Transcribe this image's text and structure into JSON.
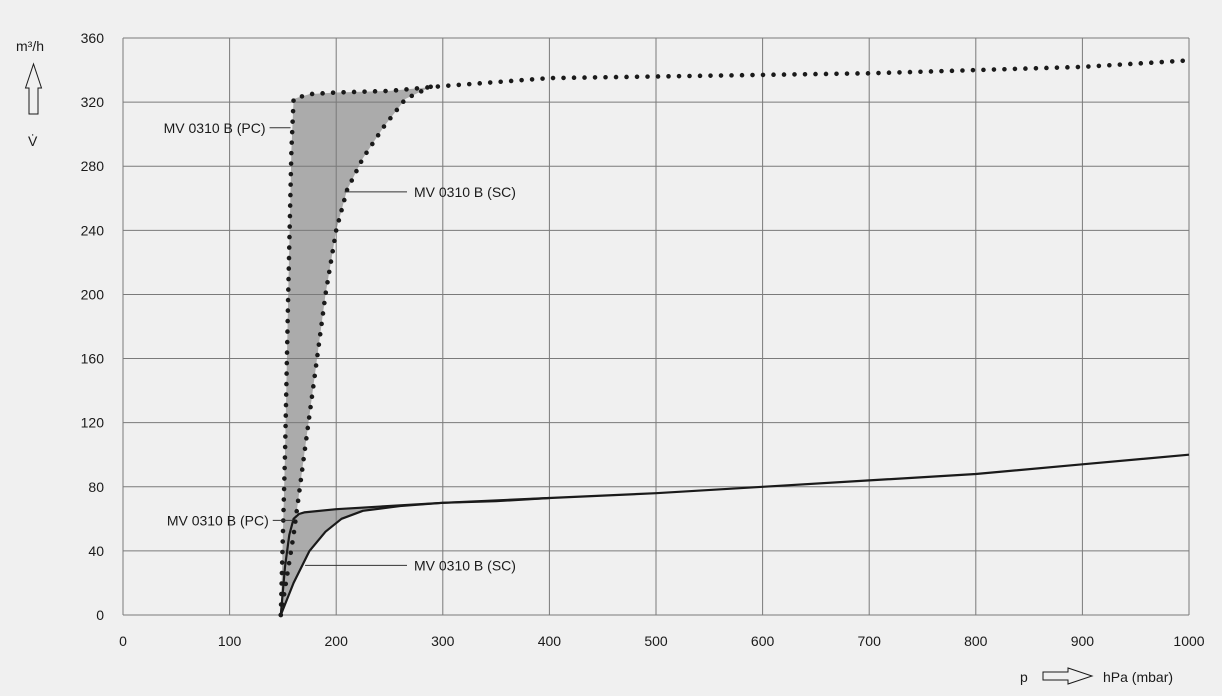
{
  "chart_data": {
    "type": "line",
    "ylabel_unit": "m³/h",
    "ylabel_symbol": "V̇",
    "xlabel_symbol": "p",
    "xlabel_unit": "hPa (mbar)",
    "xlim": [
      0,
      1000
    ],
    "ylim": [
      0,
      360
    ],
    "x_ticks": [
      0,
      100,
      200,
      300,
      400,
      500,
      600,
      700,
      800,
      900,
      1000
    ],
    "y_ticks": [
      0,
      40,
      80,
      120,
      160,
      200,
      240,
      280,
      320,
      360
    ],
    "grid": true,
    "colors": {
      "line": "#1a1a1a",
      "fill": "#ababab",
      "grid": "#7a7a7a",
      "background": "#f0f0f0"
    },
    "series": [
      {
        "name": "MV 0310 B (PC)",
        "style": "dotted",
        "points": [
          [
            148,
            0
          ],
          [
            152,
            100
          ],
          [
            155,
            200
          ],
          [
            158,
            290
          ],
          [
            160,
            322
          ],
          [
            175,
            325
          ],
          [
            200,
            326
          ],
          [
            250,
            327
          ],
          [
            300,
            330
          ],
          [
            400,
            335
          ],
          [
            500,
            336
          ],
          [
            600,
            337
          ],
          [
            700,
            338
          ],
          [
            800,
            340
          ],
          [
            900,
            342
          ],
          [
            1000,
            346
          ]
        ]
      },
      {
        "name": "MV 0310 B (SC)",
        "style": "dotted",
        "points": [
          [
            148,
            0
          ],
          [
            160,
            50
          ],
          [
            170,
            100
          ],
          [
            180,
            150
          ],
          [
            190,
            200
          ],
          [
            200,
            240
          ],
          [
            210,
            265
          ],
          [
            225,
            285
          ],
          [
            245,
            305
          ],
          [
            265,
            322
          ],
          [
            290,
            330
          ]
        ]
      },
      {
        "name": "MV 0310 B (PC)",
        "style": "solid",
        "points": [
          [
            148,
            0
          ],
          [
            152,
            30
          ],
          [
            156,
            50
          ],
          [
            160,
            60
          ],
          [
            165,
            63
          ],
          [
            170,
            64
          ],
          [
            200,
            66
          ],
          [
            250,
            68
          ],
          [
            300,
            70
          ],
          [
            400,
            73
          ],
          [
            500,
            76
          ],
          [
            600,
            80
          ],
          [
            700,
            84
          ],
          [
            800,
            88
          ],
          [
            900,
            94
          ],
          [
            1000,
            100
          ]
        ]
      },
      {
        "name": "MV 0310 B (SC)",
        "style": "solid",
        "points": [
          [
            148,
            0
          ],
          [
            160,
            20
          ],
          [
            175,
            40
          ],
          [
            190,
            52
          ],
          [
            205,
            60
          ],
          [
            225,
            65
          ],
          [
            260,
            68
          ],
          [
            300,
            70
          ],
          [
            350,
            71
          ],
          [
            400,
            73
          ]
        ]
      }
    ],
    "annotations": [
      {
        "text": "MV 0310 B (PC)",
        "side": "left",
        "at": [
          160,
          304
        ]
      },
      {
        "text": "MV 0310 B (SC)",
        "side": "right",
        "at": [
          205,
          264
        ]
      },
      {
        "text": "MV 0310 B (PC)",
        "side": "left",
        "at": [
          163,
          59
        ]
      },
      {
        "text": "MV 0310 B (SC)",
        "side": "right",
        "at": [
          168,
          31
        ]
      }
    ]
  }
}
